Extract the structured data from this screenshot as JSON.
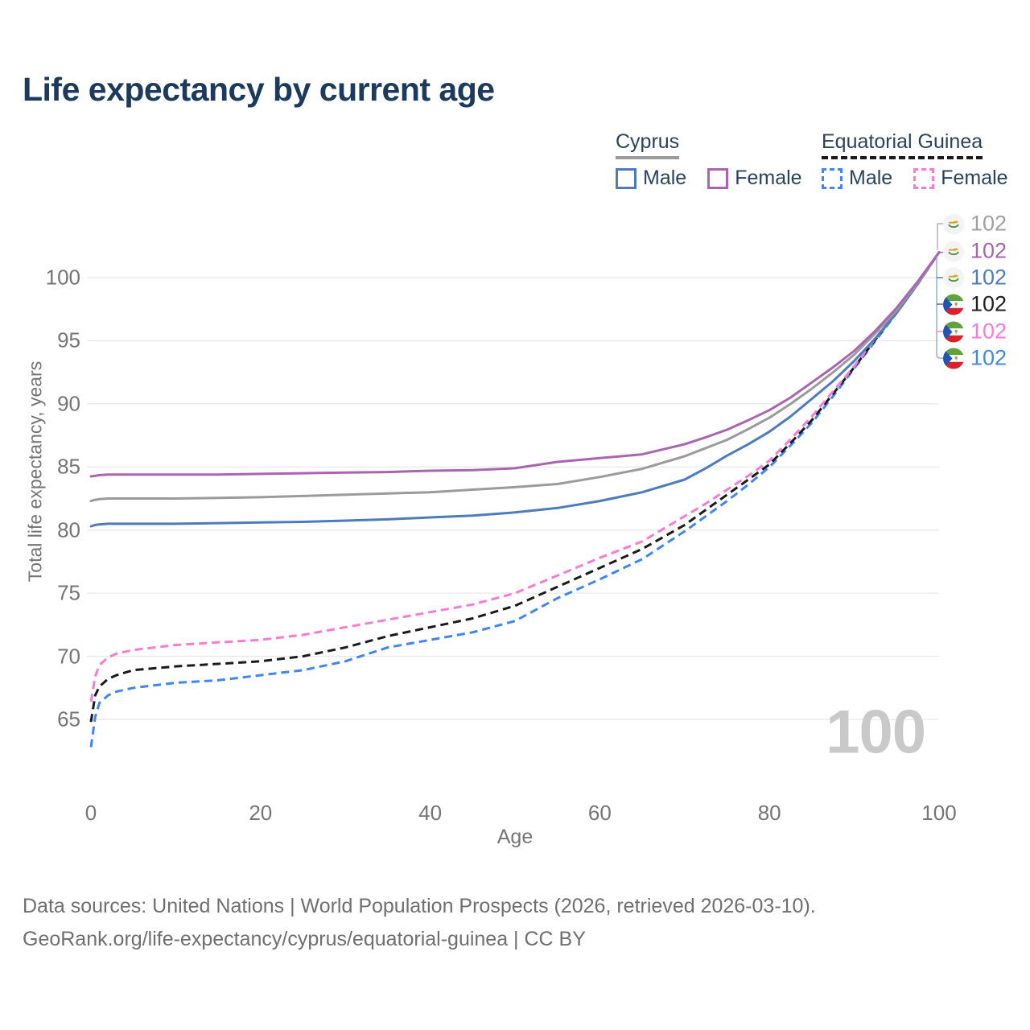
{
  "title": "Life expectancy by current age",
  "legend": {
    "cyprus": {
      "label": "Cyprus",
      "male": "Male",
      "female": "Female"
    },
    "equatorial_guinea": {
      "label": "Equatorial Guinea",
      "male": "Male",
      "female": "Female"
    }
  },
  "watermark": "100",
  "footer": {
    "line1": "Data sources: United Nations | World Population Prospects (2026, retrieved 2026-03-10).",
    "line2": "GeoRank.org/life-expectancy/cyprus/equatorial-guinea | CC BY"
  },
  "colors": {
    "title": "#1b3a5c",
    "legend_text": "#2a425b",
    "cyprus_underline": "#9b9b9b",
    "eg_underline": "#1a1a1a",
    "cyprus_male": "#4d7cbe",
    "cyprus_female": "#ab64b0",
    "cyprus_total": "#9b9b9b",
    "eg_male": "#3f86f5",
    "eg_female": "#fb7ad6",
    "eg_total": "#1a1a1a",
    "gridline": "#e8e8e8",
    "axis_text": "#757575",
    "watermark": "#c9c9c9",
    "footer_text": "#6f6f6f"
  },
  "chart_data": {
    "type": "line",
    "title": "Life expectancy by current age",
    "xlabel": "Age",
    "ylabel": "Total life expectancy, years",
    "xlim": [
      0,
      100
    ],
    "ylim": [
      62,
      103
    ],
    "x_ticks": [
      0,
      20,
      40,
      60,
      80,
      100
    ],
    "y_ticks": [
      65,
      70,
      75,
      80,
      85,
      90,
      95,
      100
    ],
    "grid": "horizontal",
    "legend_position": "top-right",
    "ages": [
      0,
      0.5,
      1,
      2,
      3,
      5,
      10,
      15,
      20,
      25,
      30,
      35,
      40,
      45,
      50,
      55,
      60,
      65,
      70,
      72.5,
      75,
      77.5,
      80,
      82.5,
      85,
      87.5,
      90,
      92.5,
      95,
      97.5,
      100
    ],
    "series": [
      {
        "id": "eg_male",
        "name": "Equatorial Guinea Male",
        "style": "dashed",
        "color": "#3f86f5",
        "values": [
          62.8,
          65.2,
          66.3,
          66.9,
          67.2,
          67.5,
          67.9,
          68.1,
          68.5,
          68.9,
          69.6,
          70.7,
          71.3,
          71.9,
          72.8,
          74.6,
          76.1,
          77.7,
          79.9,
          81.1,
          82.3,
          83.6,
          85.0,
          86.7,
          88.5,
          90.6,
          92.8,
          95.0,
          97.2,
          99.5,
          102
        ]
      },
      {
        "id": "eg_total",
        "name": "Equatorial Guinea Both sexes",
        "style": "dashed",
        "color": "#1a1a1a",
        "values": [
          64.8,
          66.9,
          67.6,
          68.2,
          68.5,
          68.9,
          69.2,
          69.4,
          69.6,
          70.0,
          70.7,
          71.6,
          72.3,
          73.0,
          74.0,
          75.5,
          77.0,
          78.5,
          80.4,
          81.6,
          82.8,
          84.0,
          85.2,
          86.9,
          88.7,
          90.8,
          92.9,
          95.1,
          97.3,
          99.6,
          102
        ]
      },
      {
        "id": "eg_female",
        "name": "Equatorial Guinea Female",
        "style": "dashed",
        "color": "#fb7ad6",
        "values": [
          66.4,
          68.4,
          69.3,
          69.9,
          70.2,
          70.5,
          70.9,
          71.1,
          71.3,
          71.7,
          72.3,
          72.9,
          73.5,
          74.1,
          75.0,
          76.4,
          77.8,
          79.1,
          81.1,
          82.1,
          83.2,
          84.3,
          85.5,
          87.2,
          89.0,
          91.0,
          93.0,
          95.2,
          97.4,
          99.6,
          102
        ]
      },
      {
        "id": "cyprus_male",
        "name": "Cyprus Male",
        "style": "solid",
        "color": "#4d7cbe",
        "values": [
          80.3,
          80.4,
          80.45,
          80.5,
          80.5,
          80.5,
          80.5,
          80.55,
          80.6,
          80.65,
          80.75,
          80.85,
          81.0,
          81.15,
          81.4,
          81.75,
          82.3,
          83.0,
          84.0,
          84.9,
          85.9,
          86.8,
          87.8,
          89.0,
          90.4,
          91.8,
          93.4,
          95.2,
          97.2,
          99.5,
          102
        ]
      },
      {
        "id": "cyprus_total",
        "name": "Cyprus Both sexes",
        "style": "solid",
        "color": "#9b9b9b",
        "values": [
          82.3,
          82.4,
          82.45,
          82.5,
          82.5,
          82.5,
          82.5,
          82.55,
          82.6,
          82.7,
          82.8,
          82.9,
          83.0,
          83.2,
          83.4,
          83.65,
          84.2,
          84.85,
          85.85,
          86.5,
          87.15,
          88.0,
          88.9,
          90.0,
          91.2,
          92.5,
          93.9,
          95.6,
          97.4,
          99.6,
          102
        ]
      },
      {
        "id": "cyprus_female",
        "name": "Cyprus Female",
        "style": "solid",
        "color": "#ab64b0",
        "values": [
          84.25,
          84.3,
          84.35,
          84.4,
          84.4,
          84.4,
          84.4,
          84.4,
          84.45,
          84.5,
          84.55,
          84.6,
          84.7,
          84.75,
          84.9,
          85.4,
          85.7,
          86.0,
          86.8,
          87.35,
          87.95,
          88.7,
          89.5,
          90.5,
          91.7,
          92.9,
          94.2,
          95.8,
          97.6,
          99.7,
          102
        ]
      }
    ],
    "right_labels": [
      {
        "series": "cyprus_total",
        "flag": "cyprus",
        "value": "102",
        "color": "#a0a0a0"
      },
      {
        "series": "cyprus_female",
        "flag": "cyprus",
        "value": "102",
        "color": "#a864ae"
      },
      {
        "series": "cyprus_male",
        "flag": "cyprus",
        "value": "102",
        "color": "#4d7cbe"
      },
      {
        "series": "eg_total",
        "flag": "equatorial-guinea",
        "value": "102",
        "color": "#1f1f1f"
      },
      {
        "series": "eg_female",
        "flag": "equatorial-guinea",
        "value": "102",
        "color": "#fb7ad6"
      },
      {
        "series": "eg_male",
        "flag": "equatorial-guinea",
        "value": "102",
        "color": "#3f86f5"
      }
    ]
  }
}
